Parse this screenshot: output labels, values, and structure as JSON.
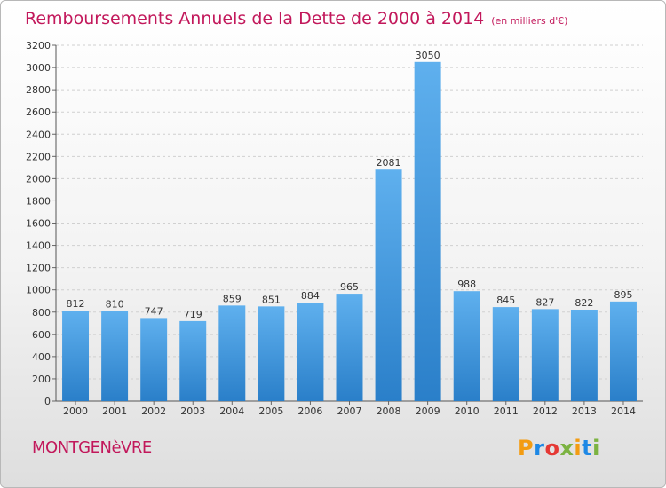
{
  "title": "Remboursements Annuels de la Dette de 2000 à 2014",
  "unit_note": "(en milliers d'€)",
  "commune": "MONTGENèVRE",
  "logo": {
    "text": "Proxiti",
    "letter_colors": [
      "#f39c12",
      "#1e88e5",
      "#e53935",
      "#7cb342",
      "#f39c12",
      "#1e88e5",
      "#7cb342"
    ]
  },
  "chart_data": {
    "type": "bar",
    "title": "Remboursements Annuels de la Dette de 2000 à 2014",
    "categories": [
      "2000",
      "2001",
      "2002",
      "2003",
      "2004",
      "2005",
      "2006",
      "2007",
      "2008",
      "2009",
      "2010",
      "2011",
      "2012",
      "2013",
      "2014"
    ],
    "values": [
      812,
      810,
      747,
      719,
      859,
      851,
      884,
      965,
      2081,
      3050,
      988,
      845,
      827,
      822,
      895
    ],
    "ylim": [
      0,
      3200
    ],
    "yticks": [
      0,
      200,
      400,
      600,
      800,
      1000,
      1200,
      1400,
      1600,
      1800,
      2000,
      2200,
      2400,
      2600,
      2800,
      3000,
      3200
    ],
    "grid": true,
    "bar_color_top": "#5fb0ee",
    "bar_color_bottom": "#2a7fc9"
  }
}
